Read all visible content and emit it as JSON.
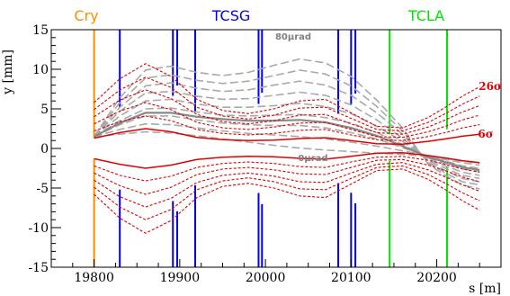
{
  "chart_data": {
    "type": "line",
    "xlabel": "s [m]",
    "ylabel": "y [mm]",
    "xlim": [
      19750,
      20275
    ],
    "ylim": [
      -15,
      15
    ],
    "x_ticks": [
      19800,
      19900,
      20000,
      20100,
      20200
    ],
    "y_ticks": [
      -15,
      -10,
      -5,
      0,
      5,
      10,
      15
    ],
    "grid": false,
    "elements": [
      {
        "name": "Cry",
        "color": "#ff8c00",
        "positions": [
          19800
        ]
      },
      {
        "name": "TCSG",
        "color": "#0000ff",
        "positions": [
          19830,
          19892,
          19897,
          19918,
          19992,
          19996,
          20085,
          20100,
          20105
        ]
      },
      {
        "name": "TCLA",
        "color": "#00e600",
        "positions": [
          20145,
          20212
        ]
      }
    ],
    "envelope_labels": [
      {
        "text": "26σ",
        "color": "#e00000"
      },
      {
        "text": "6σ",
        "color": "#e00000"
      }
    ],
    "angle_labels": [
      {
        "text": "80μrad",
        "color": "#808080"
      },
      {
        "text": "0μrad",
        "color": "#808080"
      }
    ],
    "x": [
      19800,
      19830,
      19860,
      19890,
      19920,
      19950,
      19980,
      20010,
      20040,
      20070,
      20100,
      20130,
      20160,
      20190,
      20210,
      20230,
      20250
    ],
    "envelope_series": [
      {
        "sigma": 6,
        "upper": [
          1.3,
          2.0,
          2.5,
          2.1,
          1.4,
          1.1,
          1.0,
          1.05,
          1.25,
          1.35,
          1.0,
          0.6,
          0.55,
          0.9,
          1.2,
          1.55,
          1.8
        ],
        "lower": [
          -1.3,
          -2.0,
          -2.5,
          -2.1,
          -1.4,
          -1.1,
          -1.0,
          -1.05,
          -1.25,
          -1.35,
          -1.0,
          -0.6,
          -0.55,
          -0.9,
          -1.2,
          -1.55,
          -1.8
        ]
      },
      {
        "sigma": 10,
        "upper": [
          2.2,
          3.4,
          4.1,
          3.5,
          2.4,
          1.9,
          1.7,
          1.9,
          2.3,
          2.4,
          1.7,
          1.1,
          1.0,
          1.5,
          2.0,
          2.6,
          3.0
        ],
        "lower": [
          -2.2,
          -3.4,
          -4.1,
          -3.5,
          -2.4,
          -1.9,
          -1.7,
          -1.9,
          -2.3,
          -2.4,
          -1.7,
          -1.1,
          -1.0,
          -1.5,
          -2.0,
          -2.6,
          -3.0
        ]
      },
      {
        "sigma": 14,
        "upper": [
          3.1,
          4.7,
          5.8,
          4.9,
          3.3,
          2.6,
          2.4,
          2.7,
          3.2,
          3.3,
          2.4,
          1.5,
          1.4,
          2.1,
          2.8,
          3.6,
          4.2
        ],
        "lower": [
          -3.1,
          -4.7,
          -5.8,
          -4.9,
          -3.3,
          -2.6,
          -2.4,
          -2.7,
          -3.2,
          -3.3,
          -2.4,
          -1.5,
          -1.4,
          -2.1,
          -2.8,
          -3.6,
          -4.2
        ]
      },
      {
        "sigma": 18,
        "upper": [
          4.0,
          6.1,
          7.4,
          6.3,
          4.3,
          3.4,
          3.1,
          3.5,
          4.2,
          4.3,
          3.1,
          2.0,
          1.8,
          2.7,
          3.6,
          4.6,
          5.4
        ],
        "lower": [
          -4.0,
          -6.1,
          -7.4,
          -6.3,
          -4.3,
          -3.4,
          -3.1,
          -3.5,
          -4.2,
          -4.3,
          -3.1,
          -2.0,
          -1.8,
          -2.7,
          -3.6,
          -4.6,
          -5.4
        ]
      },
      {
        "sigma": 22,
        "upper": [
          4.9,
          7.4,
          9.0,
          7.7,
          5.2,
          4.1,
          3.7,
          4.2,
          5.1,
          5.2,
          3.8,
          2.4,
          2.2,
          3.3,
          4.4,
          5.6,
          6.6
        ],
        "lower": [
          -4.9,
          -7.4,
          -9.0,
          -7.7,
          -5.2,
          -4.1,
          -3.7,
          -4.2,
          -5.1,
          -5.2,
          -3.8,
          -2.4,
          -2.2,
          -3.3,
          -4.4,
          -5.6,
          -6.6
        ]
      },
      {
        "sigma": 26,
        "upper": [
          5.8,
          8.8,
          10.7,
          9.1,
          6.2,
          4.8,
          4.4,
          5.0,
          6.0,
          6.2,
          4.5,
          2.8,
          2.6,
          3.9,
          5.2,
          6.6,
          7.8
        ],
        "lower": [
          -5.8,
          -8.8,
          -10.7,
          -9.1,
          -6.2,
          -4.8,
          -4.4,
          -5.0,
          -6.0,
          -6.2,
          -4.5,
          -2.8,
          -2.6,
          -3.9,
          -5.2,
          -6.6,
          -7.8
        ]
      }
    ],
    "kick_series": [
      {
        "angle_urad": 0,
        "y": [
          1.5,
          1.8,
          2.1,
          1.95,
          1.6,
          1.2,
          0.8,
          0.4,
          0.05,
          -0.2,
          -0.4,
          -0.6,
          -0.75,
          -1.0,
          -1.3,
          -1.6,
          -1.85
        ]
      },
      {
        "angle_urad": 10,
        "y": [
          1.5,
          2.4,
          3.1,
          3.0,
          2.6,
          2.2,
          1.9,
          1.7,
          1.5,
          1.2,
          0.8,
          0.3,
          -0.3,
          -0.9,
          -1.4,
          -1.8,
          -2.1
        ]
      },
      {
        "angle_urad": 20,
        "y": [
          1.5,
          3.0,
          4.1,
          4.1,
          3.6,
          3.2,
          3.0,
          2.9,
          2.9,
          2.6,
          2.0,
          1.2,
          0.1,
          -1.0,
          -1.6,
          -2.2,
          -2.5
        ]
      },
      {
        "angle_urad": 30,
        "y": [
          1.5,
          3.5,
          5.0,
          5.1,
          4.6,
          4.2,
          4.1,
          4.2,
          4.3,
          3.9,
          3.2,
          2.0,
          0.5,
          -1.2,
          -1.9,
          -2.6,
          -2.9
        ]
      },
      {
        "angle_urad": 40,
        "y": [
          1.5,
          4.1,
          6.0,
          6.2,
          5.6,
          5.2,
          5.2,
          5.4,
          5.7,
          5.3,
          4.4,
          2.8,
          0.9,
          -1.3,
          -2.2,
          -3.0,
          -3.4
        ]
      },
      {
        "angle_urad": 50,
        "y": [
          1.5,
          4.7,
          7.0,
          7.2,
          6.6,
          6.2,
          6.3,
          6.7,
          7.1,
          6.7,
          5.5,
          3.6,
          1.3,
          -1.5,
          -2.5,
          -3.4,
          -3.8
        ]
      },
      {
        "angle_urad": 60,
        "y": [
          1.5,
          5.2,
          7.9,
          8.3,
          7.6,
          7.2,
          7.4,
          8.0,
          8.5,
          8.0,
          6.7,
          4.5,
          1.8,
          -1.7,
          -2.8,
          -3.8,
          -4.2
        ]
      },
      {
        "angle_urad": 70,
        "y": [
          1.5,
          5.8,
          8.9,
          9.3,
          8.6,
          8.2,
          8.5,
          9.2,
          9.9,
          9.4,
          7.9,
          5.3,
          2.2,
          -1.8,
          -3.1,
          -4.2,
          -4.6
        ]
      },
      {
        "angle_urad": 80,
        "y": [
          1.5,
          6.4,
          9.9,
          10.4,
          9.6,
          9.2,
          9.6,
          10.5,
          11.3,
          10.8,
          9.1,
          6.1,
          2.6,
          -2.0,
          -3.4,
          -4.6,
          -5.1
        ]
      }
    ],
    "highlighted_kick_y": [
      1.5,
      3.2,
      4.5,
      4.5,
      4.0,
      3.7,
      3.5,
      3.5,
      3.6,
      3.3,
      2.6,
      1.6,
      0.3,
      -1.1,
      -1.7,
      -2.4,
      -2.7
    ]
  }
}
